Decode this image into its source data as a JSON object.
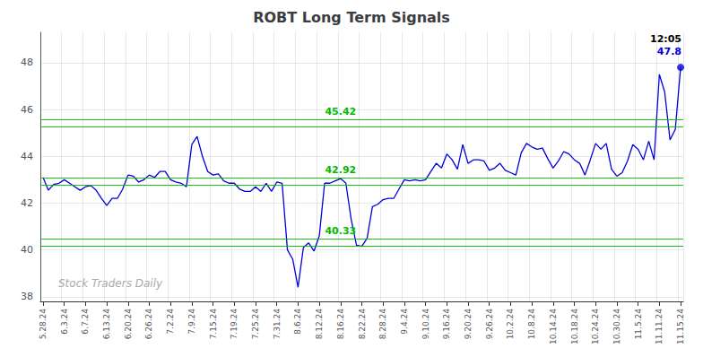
{
  "chart_data": {
    "type": "line",
    "title": "ROBT Long Term Signals",
    "categories": [
      "5.28.24",
      null,
      null,
      null,
      "6.3.24",
      null,
      null,
      null,
      "6.7.24",
      null,
      null,
      null,
      "6.13.24",
      null,
      null,
      null,
      "6.20.24",
      null,
      null,
      null,
      "6.26.24",
      null,
      null,
      null,
      "7.2.24",
      null,
      null,
      null,
      "7.9.24",
      null,
      null,
      null,
      "7.15.24",
      null,
      null,
      null,
      "7.19.24",
      null,
      null,
      null,
      "7.25.24",
      null,
      null,
      null,
      "7.31.24",
      null,
      null,
      null,
      "8.6.24",
      null,
      null,
      null,
      "8.12.24",
      null,
      null,
      null,
      "8.16.24",
      null,
      null,
      null,
      "8.22.24",
      null,
      null,
      null,
      "8.28.24",
      null,
      null,
      null,
      "9.4.24",
      null,
      null,
      null,
      "9.10.24",
      null,
      null,
      null,
      "9.16.24",
      null,
      null,
      null,
      "9.20.24",
      null,
      null,
      null,
      "9.26.24",
      null,
      null,
      null,
      "10.2.24",
      null,
      null,
      null,
      "10.8.24",
      null,
      null,
      null,
      "10.14.24",
      null,
      null,
      null,
      "10.18.24",
      null,
      null,
      null,
      "10.24.24",
      null,
      null,
      null,
      "10.30.24",
      null,
      null,
      null,
      "11.5.24",
      null,
      null,
      null,
      "11.11.24",
      null,
      null,
      null,
      "11.15.24"
    ],
    "values": [
      43.1,
      42.55,
      42.8,
      42.85,
      43.0,
      42.85,
      42.7,
      42.55,
      42.7,
      42.75,
      42.55,
      42.2,
      41.9,
      42.2,
      42.2,
      42.6,
      43.2,
      43.15,
      42.9,
      43.0,
      43.2,
      43.1,
      43.35,
      43.35,
      43.0,
      42.9,
      42.85,
      42.7,
      44.5,
      44.85,
      44.0,
      43.35,
      43.2,
      43.25,
      42.95,
      42.85,
      42.85,
      42.6,
      42.5,
      42.5,
      42.7,
      42.5,
      42.85,
      42.5,
      42.9,
      42.85,
      40.0,
      39.6,
      38.4,
      40.1,
      40.3,
      39.95,
      40.6,
      42.85,
      42.85,
      42.95,
      43.05,
      42.85,
      41.3,
      40.2,
      40.15,
      40.5,
      41.85,
      41.95,
      42.15,
      42.2,
      42.2,
      42.6,
      43.0,
      42.95,
      43.0,
      42.95,
      43.0,
      43.35,
      43.7,
      43.5,
      44.1,
      43.85,
      43.45,
      44.5,
      43.7,
      43.85,
      43.85,
      43.8,
      43.4,
      43.5,
      43.7,
      43.4,
      43.3,
      43.2,
      44.15,
      44.55,
      44.4,
      44.3,
      44.35,
      43.9,
      43.5,
      43.8,
      44.2,
      44.1,
      43.85,
      43.7,
      43.2,
      43.85,
      44.55,
      44.3,
      44.55,
      43.45,
      43.15,
      43.3,
      43.8,
      44.5,
      44.3,
      43.85,
      44.65,
      43.85,
      47.5,
      46.75,
      44.7,
      45.15,
      47.8
    ],
    "color": "#0000dd",
    "marker": "circle",
    "ylim": [
      37.8,
      49.3
    ],
    "yticks": [
      38,
      40,
      42,
      44,
      46,
      48
    ],
    "grid": true,
    "hlines": [
      {
        "y": 45.42,
        "band": [
          45.27,
          45.57
        ],
        "label": "45.42",
        "color": "#00bb00"
      },
      {
        "y": 42.92,
        "band": [
          42.77,
          43.07
        ],
        "label": "42.92",
        "color": "#00bb00"
      },
      {
        "y": 40.33,
        "band": [
          40.18,
          40.48
        ],
        "label": "40.33",
        "color": "#00bb00"
      }
    ],
    "annotations": [
      {
        "text": "12:05",
        "color": "#000000"
      },
      {
        "text": "47.8",
        "color": "#0000dd"
      }
    ],
    "watermark": "Stock Traders Daily"
  }
}
